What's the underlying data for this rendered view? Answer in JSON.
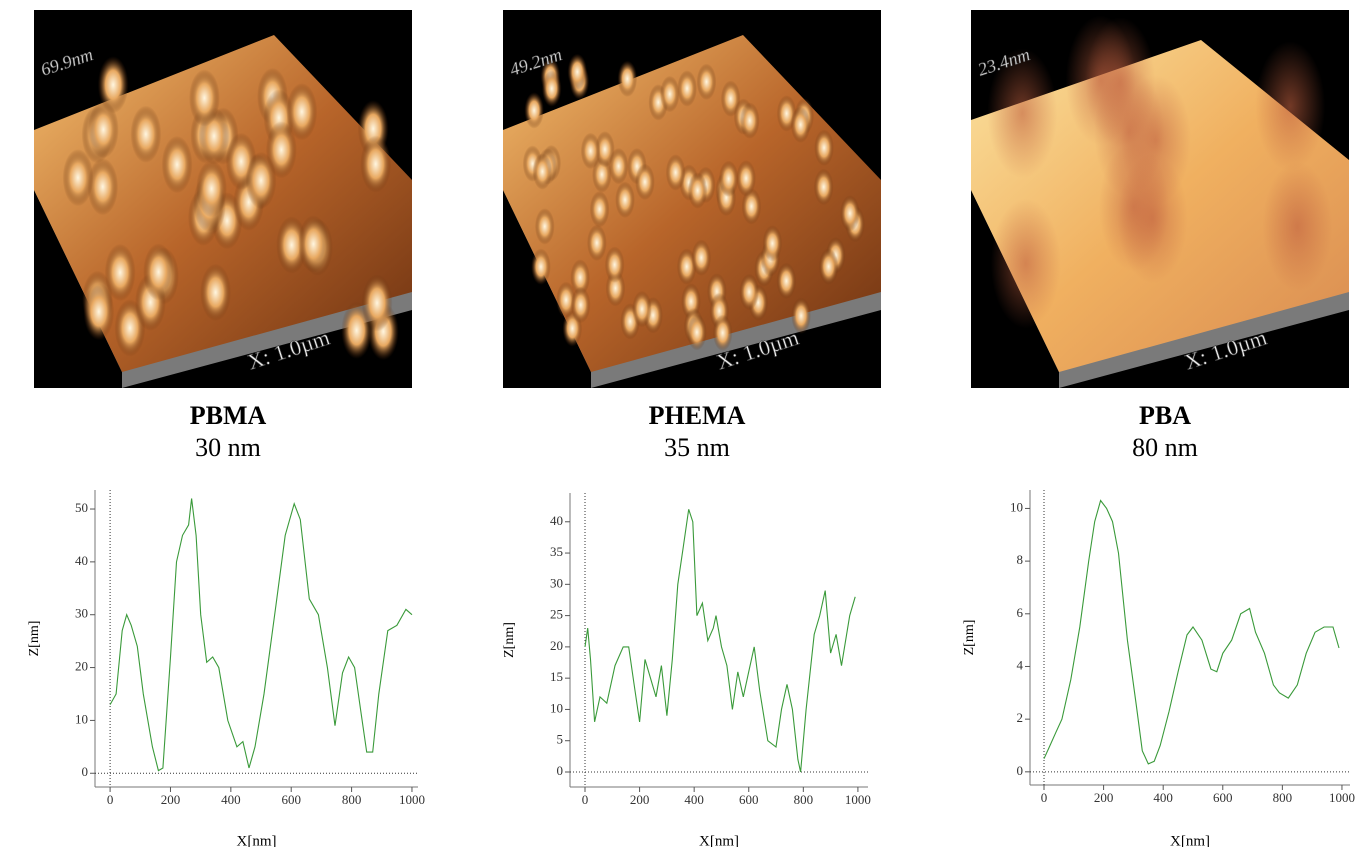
{
  "images": [
    {
      "height": "69.9nm",
      "scale": "X: 1.0µm",
      "name": "PBMA",
      "size": "30 nm"
    },
    {
      "height": "49.2nm",
      "scale": "X: 1.0µm",
      "name": "PHEMA",
      "size": "35 nm"
    },
    {
      "height": "23.4nm",
      "scale": "X: 1.0µm",
      "name": "PBA",
      "size": "80 nm"
    }
  ],
  "chart_data": [
    {
      "type": "line",
      "xlabel": "X[nm]",
      "ylabel": "Z[nm]",
      "x": [
        0,
        20,
        40,
        55,
        70,
        90,
        110,
        140,
        160,
        175,
        200,
        220,
        240,
        260,
        270,
        285,
        300,
        320,
        340,
        360,
        390,
        420,
        440,
        460,
        480,
        510,
        550,
        580,
        610,
        630,
        660,
        690,
        720,
        745,
        770,
        790,
        810,
        830,
        850,
        870,
        890,
        920,
        950,
        980,
        1000
      ],
      "series": [
        {
          "color": "#3a9a3a",
          "values": [
            13,
            15,
            27,
            30,
            28,
            24,
            15,
            5,
            0.5,
            1,
            22,
            40,
            45,
            47,
            52,
            45,
            30,
            21,
            22,
            20,
            10,
            5,
            6,
            1,
            5,
            15,
            32,
            45,
            51,
            48,
            33,
            30,
            20,
            9,
            19,
            22,
            20,
            12,
            4,
            4,
            15,
            27,
            28,
            31,
            30
          ]
        }
      ],
      "xlim": [
        -50,
        1020
      ],
      "ylim": [
        -2.6,
        53.6
      ],
      "xticks": [
        0,
        200,
        400,
        600,
        800,
        1000
      ],
      "yticks": [
        0,
        10,
        20,
        30,
        40,
        50
      ]
    },
    {
      "type": "line",
      "xlabel": "X[nm]",
      "ylabel": "Z[nm]",
      "x": [
        0,
        10,
        20,
        35,
        55,
        80,
        110,
        140,
        160,
        180,
        200,
        220,
        240,
        260,
        280,
        300,
        320,
        340,
        360,
        380,
        395,
        410,
        430,
        450,
        470,
        480,
        500,
        520,
        540,
        560,
        580,
        600,
        620,
        640,
        670,
        700,
        720,
        740,
        760,
        780,
        790,
        810,
        840,
        860,
        880,
        900,
        920,
        940,
        970,
        990
      ],
      "series": [
        {
          "color": "#3a9a3a",
          "values": [
            20,
            23,
            18,
            8,
            12,
            11,
            17,
            20,
            20,
            14,
            8,
            18,
            15,
            12,
            17,
            9,
            18,
            30,
            36,
            42,
            40,
            25,
            27,
            21,
            23,
            25,
            20,
            17,
            10,
            16,
            12,
            16,
            20,
            13,
            5,
            4,
            10,
            14,
            10,
            2,
            0,
            10,
            22,
            25,
            29,
            19,
            22,
            17,
            25,
            28
          ]
        }
      ],
      "xlim": [
        -55,
        1037
      ],
      "ylim": [
        -2.4,
        44.6
      ],
      "xticks": [
        0,
        200,
        400,
        600,
        800,
        1000
      ],
      "yticks": [
        0,
        5,
        10,
        15,
        20,
        25,
        30,
        35,
        40
      ]
    },
    {
      "type": "line",
      "xlabel": "X[nm]",
      "ylabel": "Z[nm]",
      "x": [
        0,
        20,
        40,
        60,
        90,
        120,
        150,
        170,
        190,
        210,
        230,
        250,
        280,
        310,
        330,
        350,
        370,
        390,
        420,
        450,
        480,
        500,
        530,
        560,
        580,
        600,
        630,
        660,
        690,
        710,
        740,
        770,
        790,
        820,
        850,
        880,
        910,
        940,
        970,
        990
      ],
      "series": [
        {
          "color": "#3a9a3a",
          "values": [
            0.5,
            1,
            1.5,
            2,
            3.5,
            5.5,
            8,
            9.5,
            10.3,
            10,
            9.5,
            8.3,
            5,
            2.5,
            0.8,
            0.3,
            0.4,
            1,
            2.3,
            3.8,
            5.2,
            5.5,
            5,
            3.9,
            3.8,
            4.5,
            5,
            6,
            6.2,
            5.3,
            4.5,
            3.3,
            3,
            2.8,
            3.3,
            4.5,
            5.3,
            5.5,
            5.5,
            4.7
          ]
        }
      ],
      "xlim": [
        -47,
        1027
      ],
      "ylim": [
        -0.5,
        10.7
      ],
      "xticks": [
        0,
        200,
        400,
        600,
        800,
        1000
      ],
      "yticks": [
        0,
        2,
        4,
        6,
        8,
        10
      ]
    }
  ]
}
